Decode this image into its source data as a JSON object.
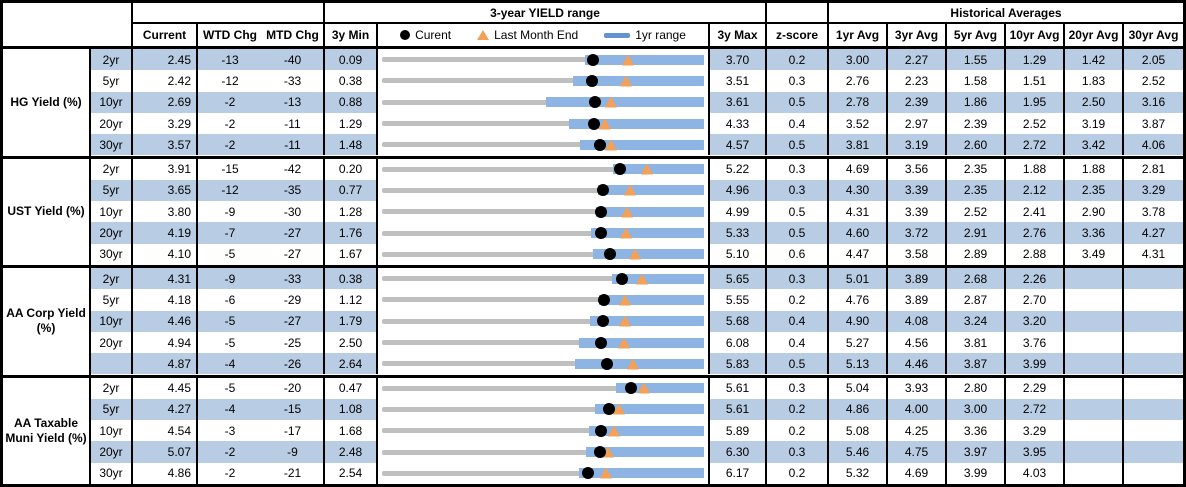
{
  "header": {
    "range_title": "3-year YIELD range",
    "hist_title": "Historical Averages",
    "cols": {
      "current": "Current",
      "wtd": "WTD Chg",
      "mtd": "MTD Chg",
      "min3y": "3y Min",
      "max3y": "3y Max",
      "zscore": "z-score"
    },
    "avg_cols": [
      "1yr Avg",
      "3yr Avg",
      "5yr Avg",
      "10yr Avg",
      "20yr Avg",
      "30yr Avg"
    ],
    "legend": [
      {
        "icon": "current-dot",
        "label": "Curent"
      },
      {
        "icon": "last-month-end-triangle",
        "label": "Last Month End"
      },
      {
        "icon": "1yr-range-bar",
        "label": "1yr range"
      }
    ]
  },
  "colors": {
    "stripe_fill": "#b8cce4",
    "range_bar": "#8db4e2",
    "legend_bar": "#6494d0",
    "marker_orange": "#f4a056",
    "track_gray": "#bfbfbf",
    "border": "#000000"
  },
  "groups": [
    {
      "label": "HG Yield (%)",
      "rows": [
        {
          "tenor": "2yr",
          "current": "2.45",
          "wtd": "-13",
          "mtd": "-40",
          "min": "0.09",
          "max": "3.70",
          "z": "0.2",
          "avgs": [
            "3.00",
            "2.27",
            "1.55",
            "1.29",
            "1.42",
            "2.05"
          ],
          "chart": {
            "min": 0.09,
            "max": 3.7,
            "current": 2.45,
            "lme": 2.85,
            "lo1yr": 2.37,
            "hi1yr": 3.7
          }
        },
        {
          "tenor": "5yr",
          "current": "2.42",
          "wtd": "-12",
          "mtd": "-33",
          "min": "0.38",
          "max": "3.51",
          "z": "0.3",
          "avgs": [
            "2.76",
            "2.23",
            "1.58",
            "1.51",
            "1.83",
            "2.52"
          ],
          "chart": {
            "min": 0.38,
            "max": 3.51,
            "current": 2.42,
            "lme": 2.75,
            "lo1yr": 2.24,
            "hi1yr": 3.51
          }
        },
        {
          "tenor": "10yr",
          "current": "2.69",
          "wtd": "-2",
          "mtd": "-13",
          "min": "0.88",
          "max": "3.61",
          "z": "0.5",
          "avgs": [
            "2.78",
            "2.39",
            "1.86",
            "1.95",
            "2.50",
            "3.16"
          ],
          "chart": {
            "min": 0.88,
            "max": 3.61,
            "current": 2.69,
            "lme": 2.82,
            "lo1yr": 2.27,
            "hi1yr": 3.61
          }
        },
        {
          "tenor": "20yr",
          "current": "3.29",
          "wtd": "-2",
          "mtd": "-11",
          "min": "1.29",
          "max": "4.33",
          "z": "0.4",
          "avgs": [
            "3.52",
            "2.97",
            "2.39",
            "2.52",
            "3.19",
            "3.87"
          ],
          "chart": {
            "min": 1.29,
            "max": 4.33,
            "current": 3.29,
            "lme": 3.4,
            "lo1yr": 3.06,
            "hi1yr": 4.33
          }
        },
        {
          "tenor": "30yr",
          "current": "3.57",
          "wtd": "-2",
          "mtd": "-11",
          "min": "1.48",
          "max": "4.57",
          "z": "0.5",
          "avgs": [
            "3.81",
            "3.19",
            "2.60",
            "2.72",
            "3.42",
            "4.06"
          ],
          "chart": {
            "min": 1.48,
            "max": 4.57,
            "current": 3.57,
            "lme": 3.68,
            "lo1yr": 3.38,
            "hi1yr": 4.57
          }
        }
      ]
    },
    {
      "label": "UST Yield (%)",
      "rows": [
        {
          "tenor": "2yr",
          "current": "3.91",
          "wtd": "-15",
          "mtd": "-42",
          "min": "0.20",
          "max": "5.22",
          "z": "0.3",
          "avgs": [
            "4.69",
            "3.56",
            "2.35",
            "1.88",
            "1.88",
            "2.81"
          ],
          "chart": {
            "min": 0.2,
            "max": 5.22,
            "current": 3.91,
            "lme": 4.33,
            "lo1yr": 3.8,
            "hi1yr": 5.22
          }
        },
        {
          "tenor": "5yr",
          "current": "3.65",
          "wtd": "-12",
          "mtd": "-35",
          "min": "0.77",
          "max": "4.96",
          "z": "0.3",
          "avgs": [
            "4.30",
            "3.39",
            "2.35",
            "2.12",
            "2.35",
            "3.29"
          ],
          "chart": {
            "min": 0.77,
            "max": 4.96,
            "current": 3.65,
            "lme": 4.0,
            "lo1yr": 3.58,
            "hi1yr": 4.96
          }
        },
        {
          "tenor": "10yr",
          "current": "3.80",
          "wtd": "-9",
          "mtd": "-30",
          "min": "1.28",
          "max": "4.99",
          "z": "0.5",
          "avgs": [
            "4.31",
            "3.39",
            "2.52",
            "2.41",
            "2.90",
            "3.78"
          ],
          "chart": {
            "min": 1.28,
            "max": 4.99,
            "current": 3.8,
            "lme": 4.1,
            "lo1yr": 3.74,
            "hi1yr": 4.99
          }
        },
        {
          "tenor": "20yr",
          "current": "4.19",
          "wtd": "-7",
          "mtd": "-27",
          "min": "1.76",
          "max": "5.33",
          "z": "0.5",
          "avgs": [
            "4.60",
            "3.72",
            "2.91",
            "2.76",
            "3.36",
            "4.27"
          ],
          "chart": {
            "min": 1.76,
            "max": 5.33,
            "current": 4.19,
            "lme": 4.46,
            "lo1yr": 4.08,
            "hi1yr": 5.33
          }
        },
        {
          "tenor": "30yr",
          "current": "4.10",
          "wtd": "-5",
          "mtd": "-27",
          "min": "1.67",
          "max": "5.10",
          "z": "0.6",
          "avgs": [
            "4.47",
            "3.58",
            "2.89",
            "2.88",
            "3.49",
            "4.31"
          ],
          "chart": {
            "min": 1.67,
            "max": 5.1,
            "current": 4.1,
            "lme": 4.37,
            "lo1yr": 3.92,
            "hi1yr": 5.1
          }
        }
      ]
    },
    {
      "label": "AA Corp Yield (%)",
      "rows": [
        {
          "tenor": "2yr",
          "current": "4.31",
          "wtd": "-9",
          "mtd": "-33",
          "min": "0.38",
          "max": "5.65",
          "z": "0.3",
          "avgs": [
            "5.01",
            "3.89",
            "2.68",
            "2.26",
            "",
            ""
          ],
          "chart": {
            "min": 0.38,
            "max": 5.65,
            "current": 4.31,
            "lme": 4.64,
            "lo1yr": 4.15,
            "hi1yr": 5.65
          }
        },
        {
          "tenor": "5yr",
          "current": "4.18",
          "wtd": "-6",
          "mtd": "-29",
          "min": "1.12",
          "max": "5.55",
          "z": "0.2",
          "avgs": [
            "4.76",
            "3.89",
            "2.87",
            "2.70",
            "",
            ""
          ],
          "chart": {
            "min": 1.12,
            "max": 5.55,
            "current": 4.18,
            "lme": 4.47,
            "lo1yr": 4.1,
            "hi1yr": 5.55
          }
        },
        {
          "tenor": "10yr",
          "current": "4.46",
          "wtd": "-5",
          "mtd": "-27",
          "min": "1.79",
          "max": "5.68",
          "z": "0.4",
          "avgs": [
            "4.90",
            "4.08",
            "3.24",
            "3.20",
            "",
            ""
          ],
          "chart": {
            "min": 1.79,
            "max": 5.68,
            "current": 4.46,
            "lme": 4.73,
            "lo1yr": 4.3,
            "hi1yr": 5.68
          }
        },
        {
          "tenor": "20yr",
          "current": "4.94",
          "wtd": "-5",
          "mtd": "-25",
          "min": "2.50",
          "max": "6.08",
          "z": "0.4",
          "avgs": [
            "5.27",
            "4.56",
            "3.81",
            "3.76",
            "",
            ""
          ],
          "chart": {
            "min": 2.5,
            "max": 6.08,
            "current": 4.94,
            "lme": 5.19,
            "lo1yr": 4.69,
            "hi1yr": 6.08
          }
        },
        {
          "tenor": "",
          "current": "4.87",
          "wtd": "-4",
          "mtd": "-26",
          "min": "2.64",
          "max": "5.83",
          "z": "0.5",
          "avgs": [
            "5.13",
            "4.46",
            "3.87",
            "3.99",
            "",
            ""
          ],
          "chart": {
            "min": 2.64,
            "max": 5.83,
            "current": 4.87,
            "lme": 5.13,
            "lo1yr": 4.55,
            "hi1yr": 5.83
          }
        }
      ]
    },
    {
      "label": "AA Taxable Muni Yield (%)",
      "rows": [
        {
          "tenor": "2yr",
          "current": "4.45",
          "wtd": "-5",
          "mtd": "-20",
          "min": "0.47",
          "max": "5.61",
          "z": "0.3",
          "avgs": [
            "5.04",
            "3.93",
            "2.80",
            "2.29",
            "",
            ""
          ],
          "chart": {
            "min": 0.47,
            "max": 5.61,
            "current": 4.45,
            "lme": 4.65,
            "lo1yr": 4.21,
            "hi1yr": 5.61
          }
        },
        {
          "tenor": "5yr",
          "current": "4.27",
          "wtd": "-4",
          "mtd": "-15",
          "min": "1.08",
          "max": "5.61",
          "z": "0.2",
          "avgs": [
            "4.86",
            "4.00",
            "3.00",
            "2.72",
            "",
            ""
          ],
          "chart": {
            "min": 1.08,
            "max": 5.61,
            "current": 4.27,
            "lme": 4.42,
            "lo1yr": 4.08,
            "hi1yr": 5.61
          }
        },
        {
          "tenor": "10yr",
          "current": "4.54",
          "wtd": "-3",
          "mtd": "-17",
          "min": "1.68",
          "max": "5.89",
          "z": "0.2",
          "avgs": [
            "5.08",
            "4.25",
            "3.36",
            "3.29",
            "",
            ""
          ],
          "chart": {
            "min": 1.68,
            "max": 5.89,
            "current": 4.54,
            "lme": 4.71,
            "lo1yr": 4.38,
            "hi1yr": 5.89
          }
        },
        {
          "tenor": "20yr",
          "current": "5.07",
          "wtd": "-2",
          "mtd": "-9",
          "min": "2.48",
          "max": "6.30",
          "z": "0.3",
          "avgs": [
            "5.46",
            "4.75",
            "3.97",
            "3.95",
            "",
            ""
          ],
          "chart": {
            "min": 2.48,
            "max": 6.3,
            "current": 5.07,
            "lme": 5.16,
            "lo1yr": 4.9,
            "hi1yr": 6.3
          }
        },
        {
          "tenor": "30yr",
          "current": "4.86",
          "wtd": "-2",
          "mtd": "-21",
          "min": "2.54",
          "max": "6.17",
          "z": "0.2",
          "avgs": [
            "5.32",
            "4.69",
            "3.99",
            "4.03",
            "",
            ""
          ],
          "chart": {
            "min": 2.54,
            "max": 6.17,
            "current": 4.86,
            "lme": 5.07,
            "lo1yr": 4.76,
            "hi1yr": 6.17
          }
        }
      ]
    }
  ]
}
